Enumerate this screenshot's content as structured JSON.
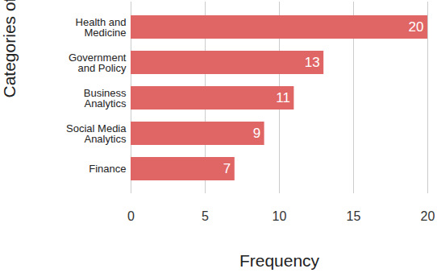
{
  "chart_data": {
    "type": "bar",
    "orientation": "horizontal",
    "categories": [
      "Health and Medicine",
      "Government and Policy",
      "Business Analytics",
      "Social Media Analytics",
      "Finance"
    ],
    "values": [
      20,
      13,
      11,
      9,
      7
    ],
    "color": "#e06666",
    "x_label": "Frequency",
    "y_label": "Categories of Application",
    "xlim": [
      0,
      20
    ],
    "xticks": [
      0,
      5,
      10,
      15,
      20
    ],
    "grid": true,
    "data_labels": true
  }
}
